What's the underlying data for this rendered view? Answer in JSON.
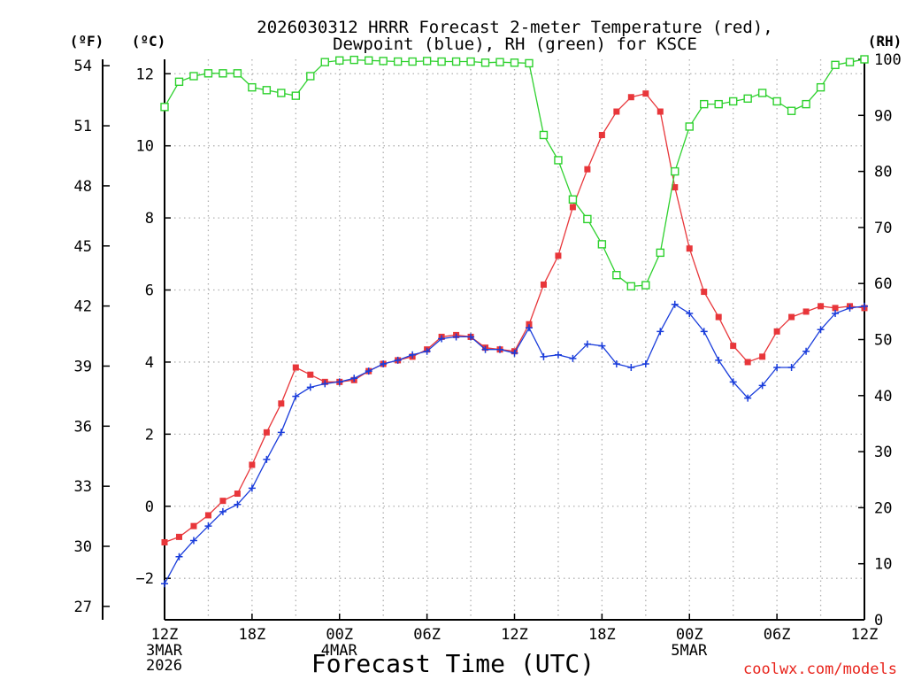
{
  "chart_data": {
    "type": "line",
    "title": [
      "2026030312 HRRR Forecast 2-meter Temperature (red),",
      "Dewpoint (blue), RH (green) for KSCE"
    ],
    "xlabel": "Forecast Time (UTC)",
    "credit": "coolwx.com/models",
    "units": {
      "f": "(ºF)",
      "c": "(ºC)",
      "rh": "(RH)"
    },
    "x_hours": {
      "range": [
        0,
        48
      ]
    },
    "x_ticks": [
      {
        "h": 0,
        "label": "12Z",
        "sub": [
          "3MAR",
          "2026"
        ]
      },
      {
        "h": 6,
        "label": "18Z",
        "sub": []
      },
      {
        "h": 12,
        "label": "00Z",
        "sub": [
          "4MAR"
        ]
      },
      {
        "h": 18,
        "label": "06Z",
        "sub": []
      },
      {
        "h": 24,
        "label": "12Z",
        "sub": []
      },
      {
        "h": 30,
        "label": "18Z",
        "sub": []
      },
      {
        "h": 36,
        "label": "00Z",
        "sub": [
          "5MAR"
        ]
      },
      {
        "h": 42,
        "label": "06Z",
        "sub": []
      },
      {
        "h": 48,
        "label": "12Z",
        "sub": []
      }
    ],
    "y_celsius": {
      "range": [
        -3.15,
        12.4
      ],
      "ticks": [
        "-2",
        "0",
        "2",
        "4",
        "6",
        "8",
        "10",
        "12"
      ]
    },
    "y_fahrenheit": {
      "ticks": [
        "27",
        "30",
        "33",
        "36",
        "39",
        "42",
        "45",
        "48",
        "51",
        "54"
      ]
    },
    "y_rh": {
      "range": [
        0,
        100
      ],
      "ticks": [
        "0",
        "10",
        "20",
        "30",
        "40",
        "50",
        "60",
        "70",
        "80",
        "90",
        "100"
      ]
    },
    "series": [
      {
        "name": "Temperature (°C)",
        "color": "#e8363a",
        "marker": "filled-square",
        "values": [
          -1.0,
          -0.85,
          -0.55,
          -0.25,
          0.15,
          0.35,
          1.15,
          2.05,
          2.85,
          3.85,
          3.65,
          3.45,
          3.45,
          3.5,
          3.75,
          3.95,
          4.05,
          4.15,
          4.35,
          4.7,
          4.75,
          4.7,
          4.4,
          4.35,
          4.3,
          5.05,
          6.15,
          6.95,
          8.3,
          9.35,
          10.3,
          10.95,
          11.35,
          11.45,
          10.95,
          8.85,
          7.15,
          5.95,
          5.25,
          4.45,
          4.0,
          4.15,
          4.85,
          5.25,
          5.4,
          5.55,
          5.5,
          5.55,
          5.5
        ]
      },
      {
        "name": "Dewpoint (°C)",
        "color": "#1a3ddb",
        "marker": "plus",
        "values": [
          -2.15,
          -1.4,
          -0.95,
          -0.55,
          -0.15,
          0.05,
          0.5,
          1.3,
          2.05,
          3.05,
          3.3,
          3.4,
          3.45,
          3.55,
          3.75,
          3.95,
          4.05,
          4.2,
          4.3,
          4.65,
          4.7,
          4.7,
          4.35,
          4.35,
          4.25,
          4.95,
          4.15,
          4.2,
          4.1,
          4.5,
          4.45,
          3.95,
          3.85,
          3.95,
          4.85,
          5.6,
          5.35,
          4.85,
          4.05,
          3.45,
          3.0,
          3.35,
          3.85,
          3.85,
          4.3,
          4.9,
          5.35,
          5.5,
          5.55
        ]
      },
      {
        "name": "RH (%)",
        "color": "#2ed12e",
        "marker": "open-square",
        "values": [
          91.5,
          96,
          97,
          97.5,
          97.5,
          97.5,
          95,
          94.5,
          94,
          93.5,
          97,
          99.5,
          99.8,
          99.9,
          99.8,
          99.7,
          99.6,
          99.6,
          99.7,
          99.6,
          99.6,
          99.6,
          99.4,
          99.5,
          99.4,
          99.3,
          86.5,
          82,
          75,
          71.5,
          67,
          61.5,
          59.5,
          59.7,
          65.5,
          80,
          88,
          92,
          92,
          92.5,
          93,
          94,
          92.5,
          90.8,
          92,
          95,
          99,
          99.5,
          100
        ]
      }
    ]
  }
}
